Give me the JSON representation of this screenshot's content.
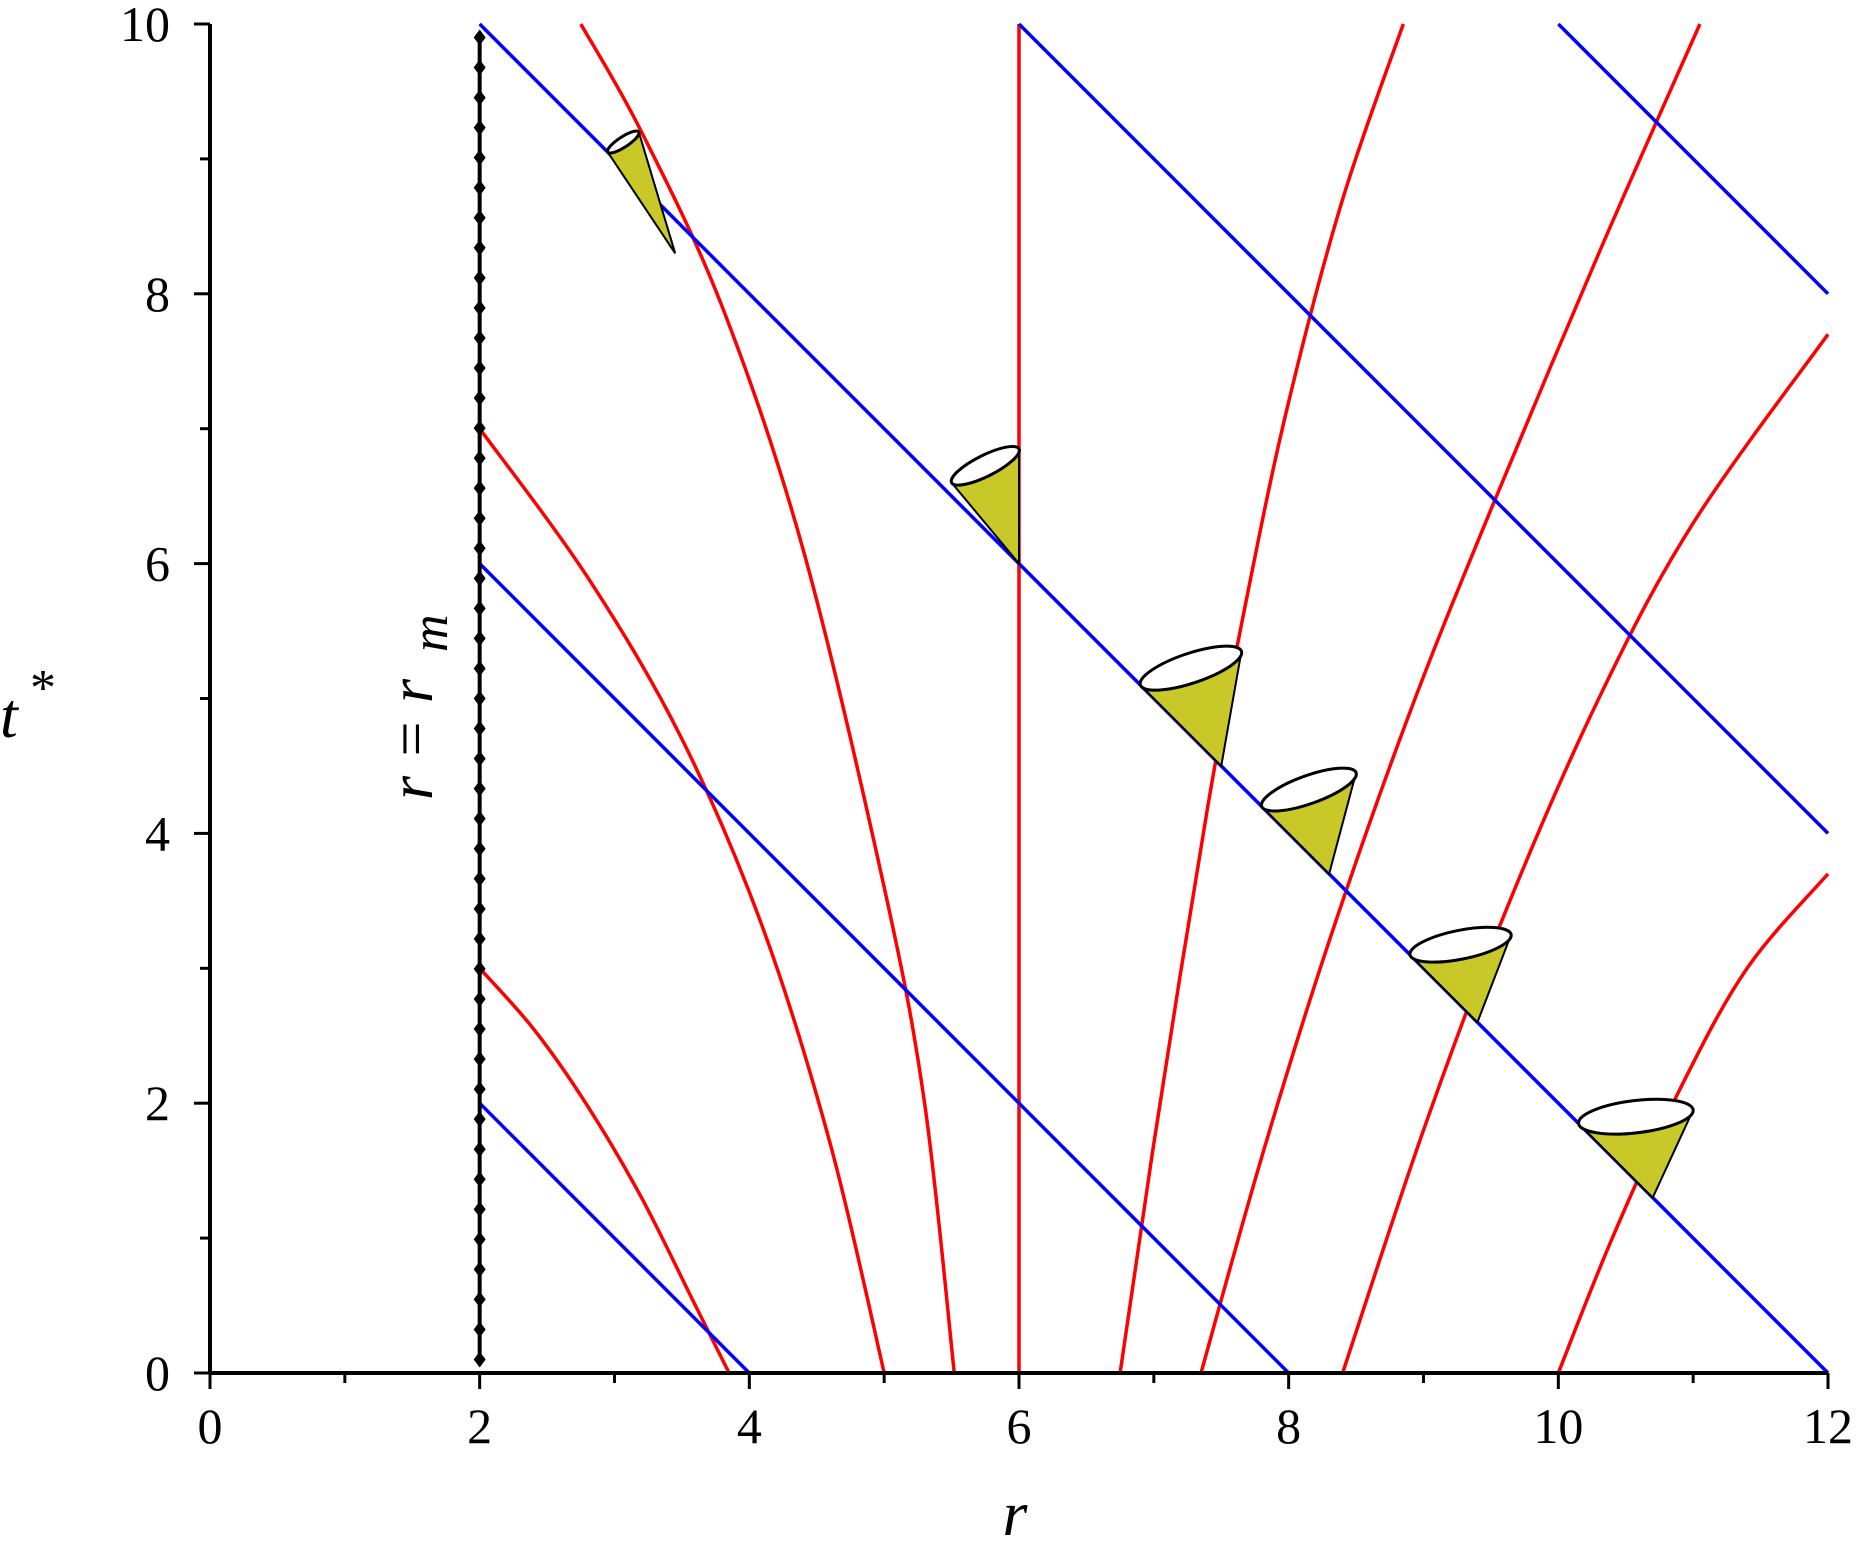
{
  "chart_data": {
    "type": "line",
    "title": "",
    "xlabel": "r",
    "ylabel": "t *",
    "xlim": [
      0,
      12
    ],
    "ylim": [
      0,
      10
    ],
    "x_ticks": [
      "0",
      "2",
      "4",
      "6",
      "8",
      "10",
      "12"
    ],
    "y_ticks": [
      "0",
      "2",
      "4",
      "6",
      "8",
      "10"
    ],
    "x_tick_values": [
      0,
      2,
      4,
      6,
      8,
      10,
      12
    ],
    "y_tick_values": [
      0,
      2,
      4,
      6,
      8,
      10
    ],
    "x_minor_tick_values": [
      1,
      3,
      5,
      7,
      9,
      11
    ],
    "y_minor_tick_values": [
      1,
      3,
      5,
      7,
      9
    ],
    "grid": false,
    "annotation": {
      "text": "r = r",
      "subscript": "m",
      "x": 1.75,
      "y": 5.8
    },
    "colors": {
      "ingoing": "#0000ff",
      "outgoing": "#ff0000",
      "boundary": "#000000",
      "cone": "#c8c828"
    },
    "boundary": {
      "name": "r = r m",
      "x": 2,
      "y_range": [
        0.1,
        9.9
      ],
      "marker_count": 45
    },
    "ingoing_lines": [
      {
        "x": [
          2,
          4
        ],
        "y": [
          2,
          0
        ]
      },
      {
        "x": [
          2,
          8
        ],
        "y": [
          6,
          0
        ]
      },
      {
        "x": [
          2,
          12
        ],
        "y": [
          10,
          0
        ]
      },
      {
        "x": [
          6,
          12
        ],
        "y": [
          10,
          4
        ]
      },
      {
        "x": [
          10,
          12
        ],
        "y": [
          10,
          8
        ]
      }
    ],
    "outgoing_curves": [
      {
        "x": [
          2.0,
          2.4,
          2.8,
          3.2,
          3.6,
          3.85
        ],
        "y": [
          3.0,
          2.55,
          1.98,
          1.3,
          0.5,
          0.0
        ]
      },
      {
        "x": [
          2.0,
          2.8,
          3.5,
          4.1,
          4.6,
          5.0
        ],
        "y": [
          7.0,
          5.9,
          4.7,
          3.3,
          1.7,
          0.0
        ]
      },
      {
        "x": [
          2.75,
          3.2,
          3.8,
          4.4,
          5.0,
          5.3,
          5.52
        ],
        "y": [
          10.0,
          9.2,
          7.9,
          6.1,
          3.6,
          2.0,
          0.0
        ]
      },
      {
        "x": [
          6.0,
          6.0
        ],
        "y": [
          10.0,
          0.0
        ]
      },
      {
        "x": [
          6.75,
          7.0,
          7.4,
          7.7,
          8.0,
          8.4,
          8.85
        ],
        "y": [
          0.0,
          1.7,
          4.2,
          5.8,
          7.2,
          8.7,
          10.0
        ]
      },
      {
        "x": [
          7.35,
          7.8,
          8.3,
          8.9,
          9.5,
          10.3,
          11.05
        ],
        "y": [
          0.0,
          1.6,
          3.2,
          4.9,
          6.4,
          8.3,
          10.0
        ]
      },
      {
        "x": [
          8.4,
          9.0,
          9.6,
          10.3,
          11.0,
          12.0
        ],
        "y": [
          0.0,
          1.8,
          3.4,
          5.0,
          6.3,
          7.7
        ]
      },
      {
        "x": [
          10.0,
          10.4,
          10.9,
          11.4,
          12.0
        ],
        "y": [
          0.0,
          1.0,
          2.1,
          3.0,
          3.7
        ]
      }
    ],
    "light_cones": [
      {
        "apex": [
          3.45,
          8.3
        ],
        "ray_top": [
          3.18,
          9.2
        ],
        "rim_left": [
          2.95,
          9.05
        ]
      },
      {
        "apex": [
          6.0,
          6.0
        ],
        "ray_top": [
          6.0,
          6.85
        ],
        "rim_left": [
          5.5,
          6.6
        ]
      },
      {
        "apex": [
          7.5,
          4.5
        ],
        "ray_top": [
          7.65,
          5.35
        ],
        "rim_left": [
          6.9,
          5.1
        ]
      },
      {
        "apex": [
          8.3,
          3.7
        ],
        "ray_top": [
          8.5,
          4.45
        ],
        "rim_left": [
          7.8,
          4.2
        ]
      },
      {
        "apex": [
          9.4,
          2.6
        ],
        "ray_top": [
          9.65,
          3.25
        ],
        "rim_left": [
          8.9,
          3.1
        ]
      },
      {
        "apex": [
          10.7,
          1.3
        ],
        "ray_top": [
          11.0,
          1.95
        ],
        "rim_left": [
          10.15,
          1.85
        ]
      }
    ]
  }
}
